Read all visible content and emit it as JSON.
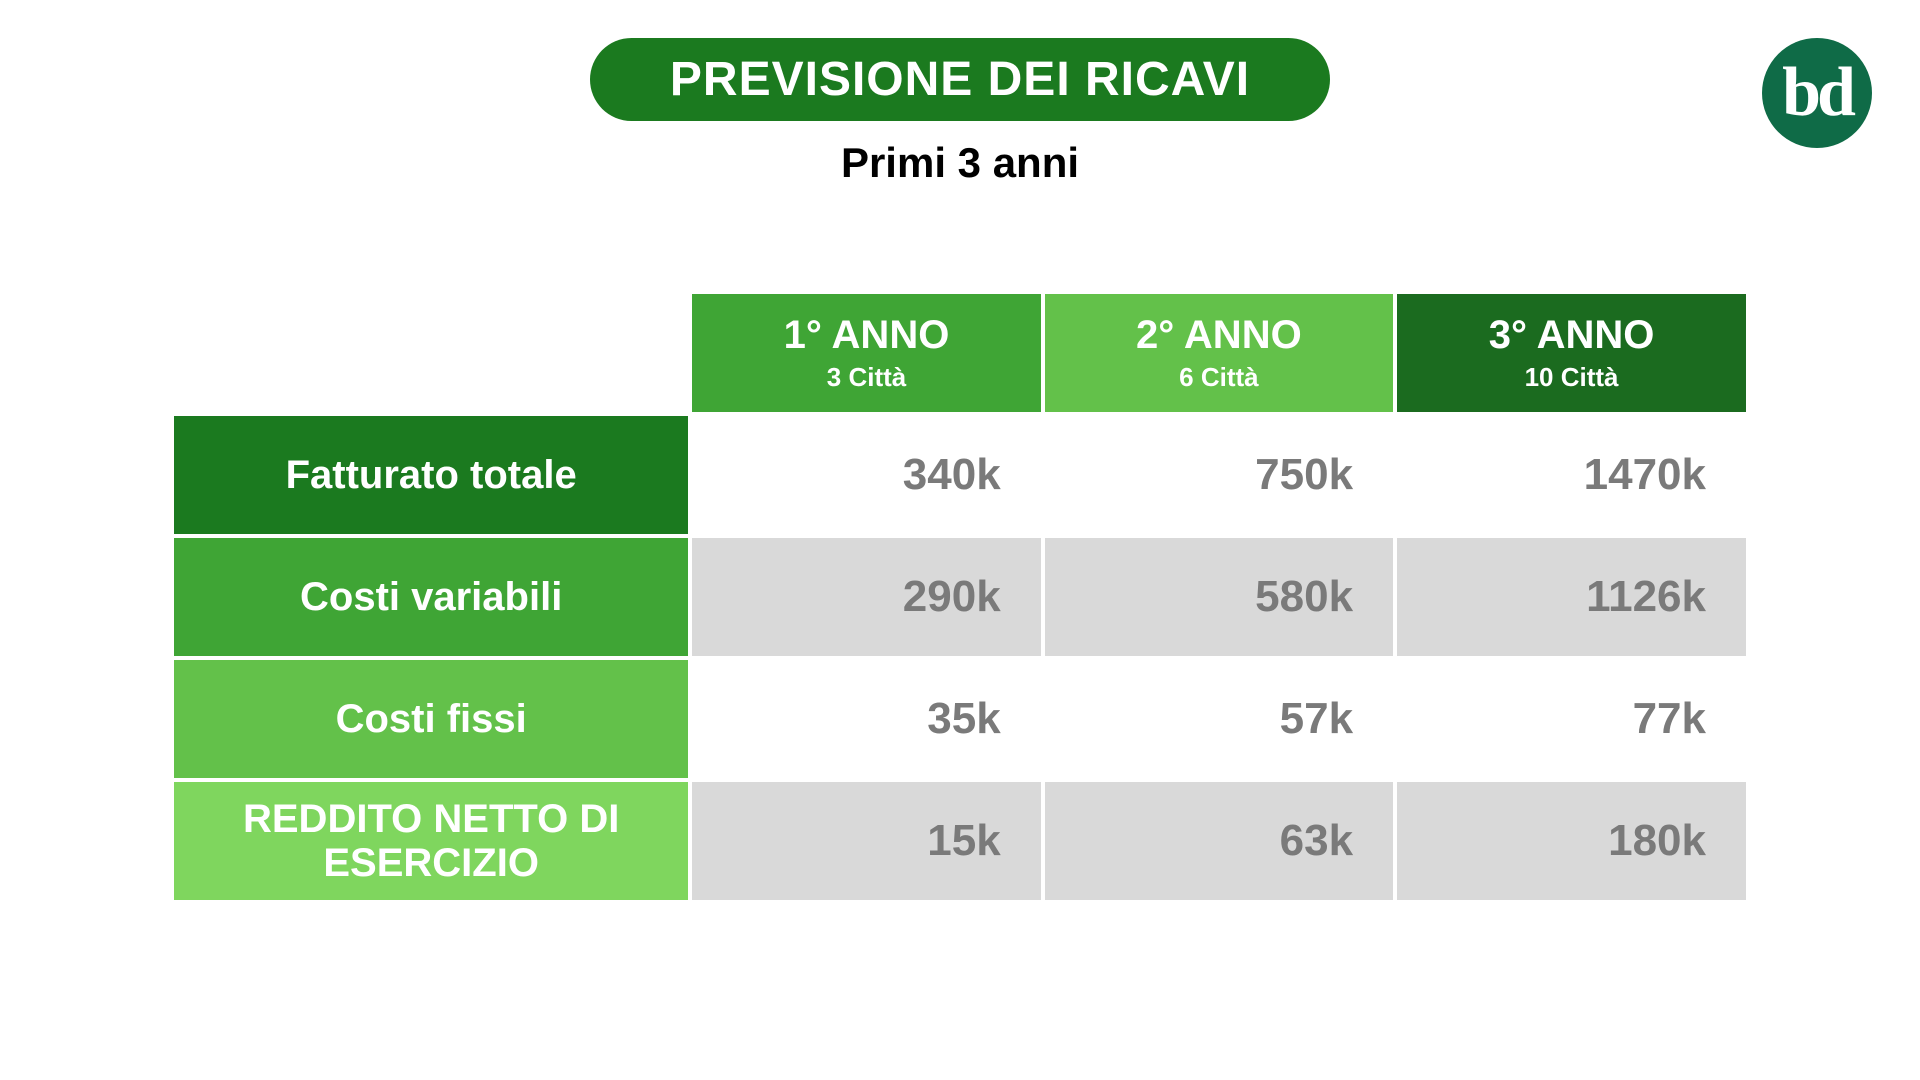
{
  "colors": {
    "pill_bg": "#1b7a1f",
    "pill_text": "#ffffff",
    "subtitle_text": "#000000",
    "logo_bg": "#0f6b47",
    "logo_text": "#ffffff",
    "value_text": "#7a7a7a",
    "row_bg_white": "#ffffff",
    "row_bg_gray": "#d9d9d9",
    "year1_bg": "#3fa535",
    "year2_bg": "#63c14a",
    "year3_bg": "#1b6b1f",
    "rowlabel_1": "#1b7a1f",
    "rowlabel_2": "#3fa535",
    "rowlabel_3": "#63c14a",
    "rowlabel_4": "#7fd65e"
  },
  "header": {
    "title": "PREVISIONE DEI RICAVI",
    "subtitle": "Primi 3 anni"
  },
  "logo": {
    "text": "bd"
  },
  "table": {
    "columns": [
      {
        "year": "1° ANNO",
        "cities": "3 Città"
      },
      {
        "year": "2° ANNO",
        "cities": "6 Città"
      },
      {
        "year": "3° ANNO",
        "cities": "10 Città"
      }
    ],
    "rows": [
      {
        "label": "Fatturato totale",
        "values": [
          "340k",
          "750k",
          "1470k"
        ]
      },
      {
        "label": "Costi variabili",
        "values": [
          "290k",
          "580k",
          "1126k"
        ]
      },
      {
        "label": "Costi fissi",
        "values": [
          "35k",
          "57k",
          "77k"
        ]
      },
      {
        "label": "REDDITO NETTO DI ESERCIZIO",
        "values": [
          "15k",
          "63k",
          "180k"
        ]
      }
    ]
  }
}
